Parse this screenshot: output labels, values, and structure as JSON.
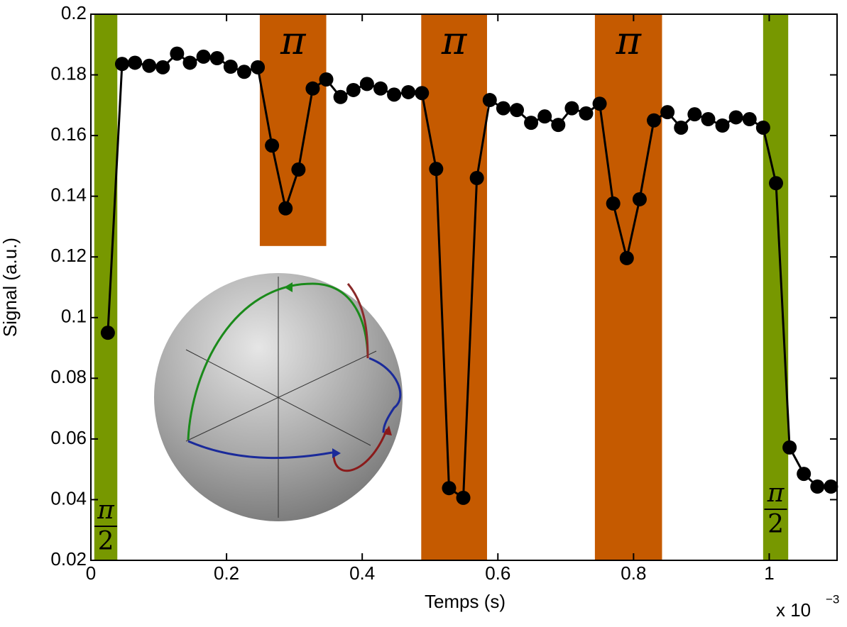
{
  "chart_data": {
    "type": "line",
    "x_label": "Temps (s)",
    "y_label": "Signal (a.u.)",
    "x_multiplier": {
      "base": "x 10",
      "exponent": "−3"
    },
    "xlim": [
      0,
      1.1
    ],
    "xticks": [
      0,
      0.2,
      0.4,
      0.6,
      0.8,
      1
    ],
    "ylim": [
      0.02,
      0.2
    ],
    "yticks": [
      0.02,
      0.04,
      0.06,
      0.08,
      0.1,
      0.12,
      0.14,
      0.16,
      0.18,
      0.2
    ],
    "series": [
      {
        "color": "#000000",
        "x": [
          0.025,
          0.046,
          0.065,
          0.086,
          0.106,
          0.127,
          0.146,
          0.166,
          0.186,
          0.206,
          0.226,
          0.246,
          0.267,
          0.287,
          0.306,
          0.327,
          0.347,
          0.368,
          0.387,
          0.407,
          0.427,
          0.447,
          0.468,
          0.488,
          0.509,
          0.528,
          0.549,
          0.569,
          0.588,
          0.608,
          0.628,
          0.649,
          0.669,
          0.689,
          0.709,
          0.73,
          0.75,
          0.77,
          0.79,
          0.809,
          0.83,
          0.85,
          0.87,
          0.89,
          0.91,
          0.931,
          0.951,
          0.971,
          0.991,
          1.01,
          1.03,
          1.051,
          1.071,
          1.091
        ],
        "values": [
          0.095,
          0.1836,
          0.184,
          0.183,
          0.1825,
          0.187,
          0.184,
          0.186,
          0.1855,
          0.1827,
          0.181,
          0.1825,
          0.1567,
          0.136,
          0.1488,
          0.1755,
          0.1785,
          0.1727,
          0.175,
          0.177,
          0.1755,
          0.1735,
          0.1743,
          0.174,
          0.149,
          0.0438,
          0.0406,
          0.146,
          0.1717,
          0.169,
          0.1684,
          0.1642,
          0.1663,
          0.1635,
          0.169,
          0.1673,
          0.1705,
          0.1376,
          0.1196,
          0.139,
          0.165,
          0.1677,
          0.1626,
          0.167,
          0.1654,
          0.1633,
          0.166,
          0.1654,
          0.1626,
          0.1443,
          0.0572,
          0.0485,
          0.0443,
          0.0443
        ]
      }
    ],
    "bands": [
      {
        "x0": 0.005,
        "x1": 0.039,
        "color": "#779800",
        "label_numerator": "π",
        "label_denominator": "2"
      },
      {
        "x0": 0.249,
        "x1": 0.347,
        "ymin": 0.1236,
        "color": "#c55a00",
        "label": "π"
      },
      {
        "x0": 0.487,
        "x1": 0.584,
        "color": "#c55a00",
        "label": "π"
      },
      {
        "x0": 0.743,
        "x1": 0.842,
        "color": "#c55a00",
        "label": "π"
      },
      {
        "x0": 0.991,
        "x1": 1.028,
        "color": "#779800",
        "label_numerator": "π",
        "label_denominator": "2"
      }
    ]
  }
}
